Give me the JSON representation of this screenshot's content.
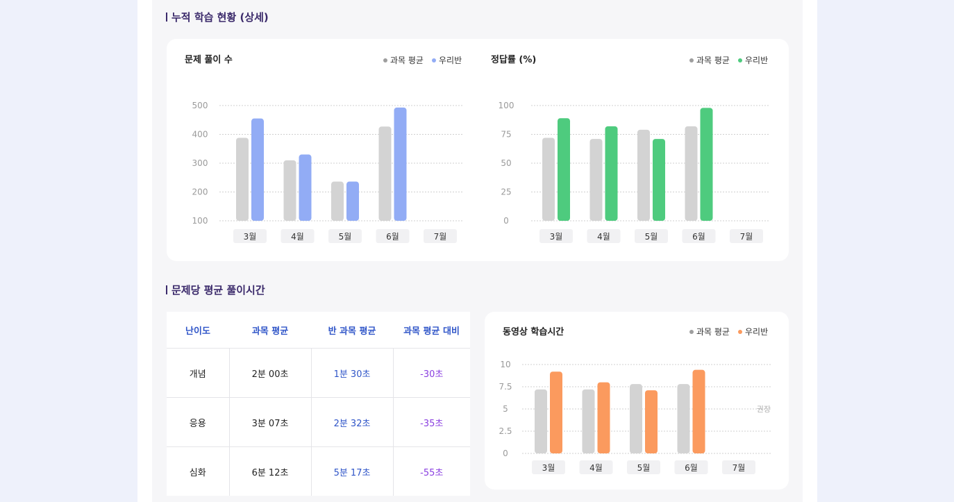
{
  "sections": {
    "cumulative_title": "누적 학습 현황 (상세)",
    "avg_time_title": "문제당 평균 풀이시간"
  },
  "colors": {
    "subject_avg": "#d3d3d3",
    "solved_ours": "#92acf5",
    "accuracy_ours": "#4ecb7e",
    "video_ours": "#fb9a5e",
    "legend_gray": "#9e9e9e"
  },
  "charts": {
    "solved": {
      "title": "문제 풀이 수",
      "legend": [
        "과목 평균",
        "우리반"
      ]
    },
    "accuracy": {
      "title": "정답률 (%)",
      "legend": [
        "과목 평균",
        "우리반"
      ]
    },
    "video": {
      "title": "동영상 학습시간",
      "legend": [
        "과목 평균",
        "우리반"
      ],
      "reference_label": "권장"
    }
  },
  "table": {
    "headers": [
      "난이도",
      "과목 평균",
      "반 과목 평균",
      "과목 평균 대비"
    ],
    "rows": [
      [
        "개념",
        "2분 00초",
        "1분 30초",
        "-30초"
      ],
      [
        "응용",
        "3분 07초",
        "2분 32초",
        "-35초"
      ],
      [
        "심화",
        "6분 12초",
        "5분 17초",
        "-55초"
      ]
    ]
  },
  "chart_data": [
    {
      "type": "bar",
      "title": "문제 풀이 수",
      "categories": [
        "3월",
        "4월",
        "5월",
        "6월",
        "7월"
      ],
      "series": [
        {
          "name": "과목 평균",
          "values": [
            388,
            310,
            236,
            427,
            null
          ]
        },
        {
          "name": "우리반",
          "values": [
            455,
            330,
            236,
            493,
            null
          ]
        }
      ],
      "yticks": [
        "500",
        "400",
        "300",
        "200",
        "100"
      ],
      "ylim": [
        100,
        500
      ],
      "grid": true,
      "legend_position": "top-right"
    },
    {
      "type": "bar",
      "title": "정답률 (%)",
      "categories": [
        "3월",
        "4월",
        "5월",
        "6월",
        "7월"
      ],
      "series": [
        {
          "name": "과목 평균",
          "values": [
            72,
            71,
            79,
            82,
            null
          ]
        },
        {
          "name": "우리반",
          "values": [
            89,
            82,
            71,
            98,
            null
          ]
        }
      ],
      "yticks": [
        "100",
        "75",
        "50",
        "25",
        "0"
      ],
      "ylim": [
        0,
        100
      ],
      "grid": true,
      "legend_position": "top-right"
    },
    {
      "type": "bar",
      "title": "동영상 학습시간",
      "categories": [
        "3월",
        "4월",
        "5월",
        "6월",
        "7월"
      ],
      "series": [
        {
          "name": "과목 평균",
          "values": [
            7.2,
            7.2,
            7.8,
            7.8,
            null
          ]
        },
        {
          "name": "우리반",
          "values": [
            9.2,
            8.0,
            7.1,
            9.4,
            null
          ]
        }
      ],
      "yticks": [
        "10",
        "7.5",
        "5",
        "2.5",
        "0"
      ],
      "ylim": [
        0,
        10
      ],
      "reference_line": {
        "label": "권장",
        "value": 5
      },
      "grid": true,
      "legend_position": "top-right"
    }
  ]
}
